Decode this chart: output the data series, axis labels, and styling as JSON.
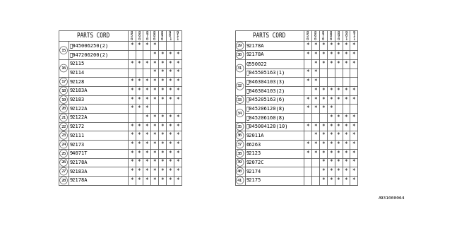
{
  "watermark": "A931000064",
  "col_headers": [
    "8\n5\n0",
    "8\n6\n0",
    "8\n7\n0",
    "8\n8\n0",
    "8\n9\n0",
    "9\n0\n1",
    "9\n1\n1"
  ],
  "left_table": {
    "rows": [
      {
        "num": "15",
        "parts": [
          {
            "code": "Ⓢ045006250(2)",
            "stars": [
              1,
              1,
              1,
              1,
              0,
              0,
              0
            ]
          },
          {
            "code": "Ⓢ047206200(2)",
            "stars": [
              0,
              0,
              0,
              1,
              1,
              1,
              1
            ]
          }
        ]
      },
      {
        "num": "16",
        "parts": [
          {
            "code": "92115",
            "stars": [
              1,
              1,
              1,
              1,
              1,
              1,
              1
            ]
          },
          {
            "code": "92114",
            "stars": [
              0,
              0,
              0,
              1,
              1,
              1,
              1
            ]
          }
        ]
      },
      {
        "num": "17",
        "parts": [
          {
            "code": "92128",
            "stars": [
              1,
              1,
              1,
              1,
              1,
              1,
              1
            ]
          }
        ]
      },
      {
        "num": "18",
        "parts": [
          {
            "code": "92183A",
            "stars": [
              1,
              1,
              1,
              1,
              1,
              1,
              1
            ]
          }
        ]
      },
      {
        "num": "19",
        "parts": [
          {
            "code": "92183",
            "stars": [
              1,
              1,
              1,
              1,
              1,
              1,
              1
            ]
          }
        ]
      },
      {
        "num": "20",
        "parts": [
          {
            "code": "92122A",
            "stars": [
              1,
              1,
              1,
              0,
              0,
              0,
              0
            ]
          }
        ]
      },
      {
        "num": "21",
        "parts": [
          {
            "code": "92122A",
            "stars": [
              0,
              0,
              1,
              1,
              1,
              1,
              1
            ]
          }
        ]
      },
      {
        "num": "22",
        "parts": [
          {
            "code": "92172",
            "stars": [
              1,
              1,
              1,
              1,
              1,
              1,
              1
            ]
          }
        ]
      },
      {
        "num": "23",
        "parts": [
          {
            "code": "92111",
            "stars": [
              1,
              1,
              1,
              1,
              1,
              1,
              1
            ]
          }
        ]
      },
      {
        "num": "24",
        "parts": [
          {
            "code": "92173",
            "stars": [
              1,
              1,
              1,
              1,
              1,
              1,
              1
            ]
          }
        ]
      },
      {
        "num": "25",
        "parts": [
          {
            "code": "94071T",
            "stars": [
              1,
              1,
              1,
              1,
              1,
              1,
              1
            ]
          }
        ]
      },
      {
        "num": "26",
        "parts": [
          {
            "code": "92178A",
            "stars": [
              1,
              1,
              1,
              1,
              1,
              1,
              1
            ]
          }
        ]
      },
      {
        "num": "27",
        "parts": [
          {
            "code": "92183A",
            "stars": [
              1,
              1,
              1,
              1,
              1,
              1,
              1
            ]
          }
        ]
      },
      {
        "num": "28",
        "parts": [
          {
            "code": "92178A",
            "stars": [
              1,
              1,
              1,
              1,
              1,
              1,
              1
            ]
          }
        ]
      }
    ]
  },
  "right_table": {
    "rows": [
      {
        "num": "29",
        "parts": [
          {
            "code": "92178A",
            "stars": [
              1,
              1,
              1,
              1,
              1,
              1,
              1
            ]
          }
        ]
      },
      {
        "num": "30",
        "parts": [
          {
            "code": "92178A",
            "stars": [
              1,
              1,
              1,
              1,
              1,
              1,
              1
            ]
          }
        ]
      },
      {
        "num": "31",
        "parts": [
          {
            "code": "Q550022",
            "stars": [
              0,
              1,
              1,
              1,
              1,
              1,
              1
            ]
          },
          {
            "code": "Ⓢ045505163(1)",
            "stars": [
              1,
              1,
              0,
              0,
              0,
              0,
              0
            ]
          }
        ]
      },
      {
        "num": "32",
        "parts": [
          {
            "code": "Ⓢ046304103(3)",
            "stars": [
              1,
              1,
              0,
              0,
              0,
              0,
              0
            ]
          },
          {
            "code": "Ⓢ046304103(2)",
            "stars": [
              0,
              1,
              1,
              1,
              1,
              1,
              1
            ]
          }
        ]
      },
      {
        "num": "33",
        "parts": [
          {
            "code": "Ⓢ045205163(6)",
            "stars": [
              1,
              1,
              1,
              1,
              1,
              1,
              1
            ]
          }
        ]
      },
      {
        "num": "34",
        "parts": [
          {
            "code": "Ⓢ045206120(8)",
            "stars": [
              1,
              1,
              1,
              1,
              0,
              0,
              0
            ]
          },
          {
            "code": "Ⓢ045206160(8)",
            "stars": [
              0,
              0,
              0,
              1,
              1,
              1,
              1
            ]
          }
        ]
      },
      {
        "num": "35",
        "parts": [
          {
            "code": "Ⓢ045004120(10)",
            "stars": [
              1,
              1,
              1,
              1,
              1,
              1,
              1
            ]
          }
        ]
      },
      {
        "num": "36",
        "parts": [
          {
            "code": "92011A",
            "stars": [
              0,
              1,
              1,
              1,
              1,
              1,
              1
            ]
          }
        ]
      },
      {
        "num": "37",
        "parts": [
          {
            "code": "66263",
            "stars": [
              1,
              1,
              1,
              1,
              1,
              1,
              1
            ]
          }
        ]
      },
      {
        "num": "38",
        "parts": [
          {
            "code": "92123",
            "stars": [
              1,
              1,
              1,
              1,
              1,
              1,
              1
            ]
          }
        ]
      },
      {
        "num": "39",
        "parts": [
          {
            "code": "92072C",
            "stars": [
              0,
              0,
              1,
              1,
              1,
              1,
              1
            ]
          }
        ]
      },
      {
        "num": "40",
        "parts": [
          {
            "code": "92174",
            "stars": [
              0,
              0,
              1,
              1,
              1,
              1,
              1
            ]
          }
        ]
      },
      {
        "num": "41",
        "parts": [
          {
            "code": "92175",
            "stars": [
              0,
              0,
              1,
              1,
              1,
              1,
              1
            ]
          }
        ]
      }
    ]
  },
  "bg_color": "#ffffff",
  "line_color": "#555555",
  "text_color": "#000000",
  "font_size": 5.0
}
